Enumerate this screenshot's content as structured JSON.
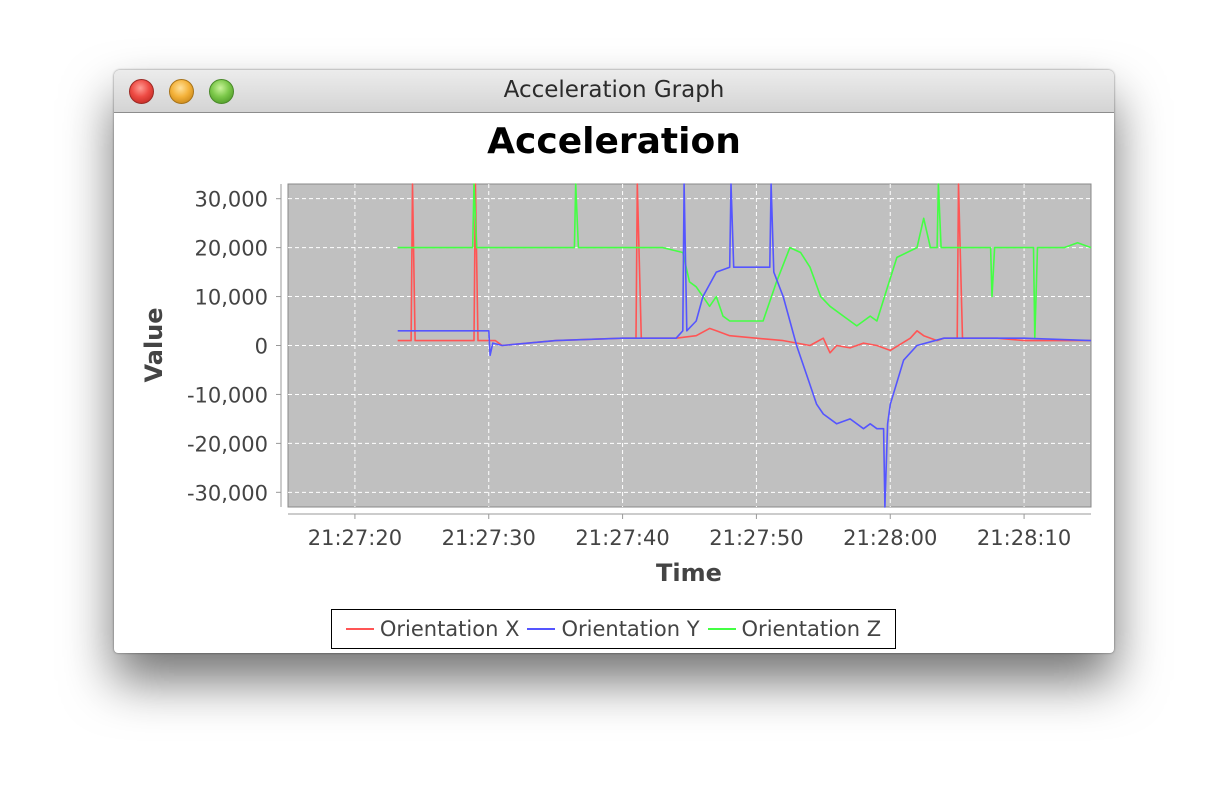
{
  "window": {
    "title": "Acceleration Graph"
  },
  "chart_data": {
    "type": "line",
    "title": "Acceleration",
    "xlabel": "Time",
    "ylabel": "Value",
    "ylim": [
      -33000,
      33000
    ],
    "xlim": [
      "21:27:15",
      "21:28:15"
    ],
    "x_ticks": [
      "21:27:20",
      "21:27:30",
      "21:27:40",
      "21:27:50",
      "21:28:00",
      "21:28:10"
    ],
    "y_ticks": [
      "30,000",
      "20,000",
      "10,000",
      "0",
      "-10,000",
      "-20,000",
      "-30,000"
    ],
    "y_tick_values": [
      30000,
      20000,
      10000,
      0,
      -10000,
      -20000,
      -30000
    ],
    "x_tick_values": [
      20,
      30,
      40,
      50,
      60,
      70
    ],
    "x_range_seconds": [
      15,
      75
    ],
    "grid": true,
    "legend": "bottom",
    "series": [
      {
        "name": "Orientation X",
        "color": "#ff5555",
        "x": [
          23.2,
          24.2,
          24.3,
          24.5,
          28.9,
          29.0,
          29.2,
          30.5,
          31.0,
          35,
          40,
          41.0,
          41.1,
          41.4,
          44,
          45.5,
          46.5,
          47,
          48,
          50,
          52,
          54,
          55,
          55.5,
          56,
          57,
          58,
          59,
          60,
          61.5,
          62,
          62.5,
          63.5,
          64,
          65.0,
          65.1,
          65.4,
          68,
          70,
          72,
          75
        ],
        "y": [
          1000,
          1000,
          33000,
          1000,
          1000,
          33000,
          1000,
          1000,
          0,
          1000,
          1500,
          1500,
          33000,
          1500,
          1500,
          2000,
          3500,
          3000,
          2000,
          1500,
          1000,
          0,
          1500,
          -1500,
          0,
          -500,
          500,
          0,
          -1000,
          1500,
          3000,
          2000,
          1000,
          1500,
          1500,
          33000,
          1500,
          1500,
          1000,
          1000,
          1000
        ]
      },
      {
        "name": "Orientation Y",
        "color": "#5555ff",
        "x": [
          23.2,
          29,
          30.0,
          30.1,
          30.3,
          31,
          35,
          40,
          44,
          44.5,
          44.6,
          44.8,
          45.5,
          46,
          47,
          48.0,
          48.1,
          48.3,
          50,
          51.0,
          51.1,
          51.3,
          52,
          53,
          54,
          54.5,
          55,
          56,
          57,
          58,
          58.5,
          59,
          59.5,
          59.6,
          59.8,
          60,
          61,
          62,
          64,
          67,
          70,
          75
        ],
        "y": [
          3000,
          3000,
          3000,
          -2000,
          500,
          0,
          1000,
          1500,
          1500,
          3000,
          33000,
          3000,
          5000,
          10000,
          15000,
          16000,
          33000,
          16000,
          16000,
          16000,
          33000,
          15000,
          10000,
          0,
          -8000,
          -12000,
          -14000,
          -16000,
          -15000,
          -17000,
          -16000,
          -17000,
          -17000,
          -33000,
          -16000,
          -12000,
          -3000,
          0,
          1500,
          1500,
          1500,
          1000
        ]
      },
      {
        "name": "Orientation Z",
        "color": "#44ff44",
        "x": [
          23.2,
          28.8,
          28.9,
          29.1,
          30,
          36.4,
          36.5,
          36.7,
          40,
          43,
          44.5,
          45,
          45.5,
          46.5,
          47,
          47.5,
          48,
          49.5,
          50.5,
          51.5,
          52.5,
          53.3,
          54,
          54.8,
          55.5,
          56.5,
          57.5,
          58.5,
          59,
          59.8,
          60.5,
          62,
          62.5,
          63,
          63.5,
          63.6,
          63.8,
          65,
          67.5,
          67.6,
          67.8,
          70.7,
          70.8,
          71,
          73,
          74,
          75
        ],
        "y": [
          20000,
          20000,
          33000,
          20000,
          20000,
          20000,
          33000,
          20000,
          20000,
          20000,
          19000,
          13000,
          12000,
          8000,
          10000,
          6000,
          5000,
          5000,
          5000,
          13000,
          20000,
          19000,
          16000,
          10000,
          8000,
          6000,
          4000,
          6000,
          5000,
          12000,
          18000,
          20000,
          26000,
          20000,
          20000,
          33000,
          20000,
          20000,
          20000,
          10000,
          20000,
          20000,
          1500,
          20000,
          20000,
          21000,
          20000
        ]
      }
    ]
  }
}
